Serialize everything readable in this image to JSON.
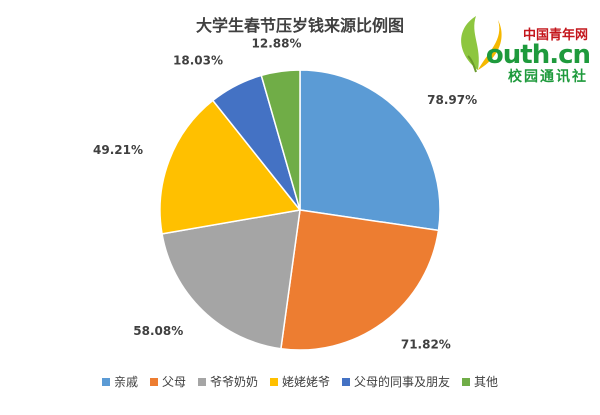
{
  "chart_data": {
    "type": "pie",
    "title": "大学生春节压岁钱来源比例图",
    "slices": [
      {
        "label": "亲戚",
        "value": 78.97,
        "display": "78.97%",
        "color": "#5b9bd5"
      },
      {
        "label": "父母",
        "value": 71.82,
        "display": "71.82%",
        "color": "#ed7d31"
      },
      {
        "label": "爷爷奶奶",
        "value": 58.08,
        "display": "58.08%",
        "color": "#a5a5a5"
      },
      {
        "label": "姥姥姥爷",
        "value": 49.21,
        "display": "49.21%",
        "color": "#ffc000"
      },
      {
        "label": "父母的同事及朋友",
        "value": 18.03,
        "display": "18.03%",
        "color": "#4472c4"
      },
      {
        "label": "其他",
        "value": 12.88,
        "display": "12.88%",
        "color": "#70ad47"
      }
    ],
    "legend_position": "bottom"
  },
  "logo": {
    "line1": "中国青年网",
    "line2": "outh.cn",
    "line3": "校园通讯社"
  }
}
